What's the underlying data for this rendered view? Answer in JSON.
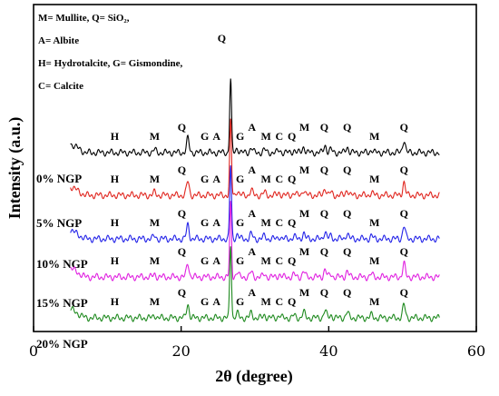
{
  "chart_data": {
    "type": "line",
    "xlabel": "2θ (degree)",
    "ylabel": "Intensity (a.u.)",
    "xlim": [
      0,
      60
    ],
    "x_ticks": [
      "0",
      "20",
      "40",
      "60"
    ],
    "grid": false,
    "legend_lines": [
      "M= Mullite,  Q= SiO₂,",
      "A= Albite",
      "H= Hydrotalcite,  G= Gismondine,",
      "C= Calcite"
    ],
    "series": [
      {
        "name": "0% NGP",
        "color": "#000000"
      },
      {
        "name": "5% NGP",
        "color": "#e0261f"
      },
      {
        "name": "10% NGP",
        "color": "#2323e8"
      },
      {
        "name": "15% NGP",
        "color": "#e020e0"
      },
      {
        "name": "20% NGP",
        "color": "#1f8a1f"
      }
    ],
    "peaks": [
      {
        "x": 16.4,
        "h": 0.35
      },
      {
        "x": 20.9,
        "h": 1.7
      },
      {
        "x": 26.7,
        "h": 9.0
      },
      {
        "x": 27.6,
        "h": 0.55
      },
      {
        "x": 29.5,
        "h": 0.6
      },
      {
        "x": 31.3,
        "h": 0.35
      },
      {
        "x": 33.3,
        "h": 0.3
      },
      {
        "x": 35.3,
        "h": 0.3
      },
      {
        "x": 36.6,
        "h": 0.7
      },
      {
        "x": 39.5,
        "h": 0.9
      },
      {
        "x": 40.3,
        "h": 0.35
      },
      {
        "x": 42.5,
        "h": 0.7
      },
      {
        "x": 45.8,
        "h": 0.35
      },
      {
        "x": 50.2,
        "h": 1.6
      }
    ],
    "phase_labels": [
      {
        "text": "H",
        "x": 11.0,
        "row": 0
      },
      {
        "text": "M",
        "x": 16.4,
        "row": 0
      },
      {
        "text": "Q",
        "x": 20.1,
        "row": 1
      },
      {
        "text": "G",
        "x": 23.2,
        "row": 0
      },
      {
        "text": "A",
        "x": 24.8,
        "row": 0
      },
      {
        "text": "G",
        "x": 28.0,
        "row": 0
      },
      {
        "text": "A",
        "x": 29.6,
        "row": 1
      },
      {
        "text": "M",
        "x": 31.5,
        "row": 0
      },
      {
        "text": "C",
        "x": 33.3,
        "row": 0
      },
      {
        "text": "Q",
        "x": 35.0,
        "row": 0
      },
      {
        "text": "M",
        "x": 36.7,
        "row": 1
      },
      {
        "text": "Q",
        "x": 39.4,
        "row": 1
      },
      {
        "text": "Q",
        "x": 42.5,
        "row": 1
      },
      {
        "text": "M",
        "x": 46.2,
        "row": 0
      },
      {
        "text": "Q",
        "x": 50.2,
        "row": 1
      }
    ],
    "top_label": {
      "text": "Q",
      "x": 25.5
    }
  }
}
